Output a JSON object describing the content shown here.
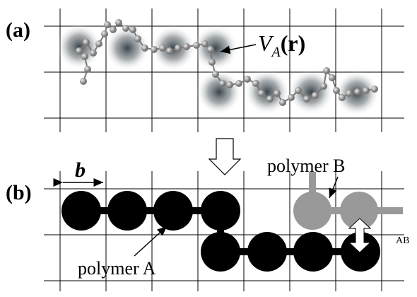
{
  "panel_a": {
    "label": "(a)",
    "potential": {
      "symbol": "V",
      "subscript": "A",
      "argument": "(r)"
    }
  },
  "panel_b": {
    "label": "(b)",
    "bond_length": "b",
    "polymer_b": "polymer B",
    "polymer_a": "polymer A",
    "interaction": "AB"
  }
}
